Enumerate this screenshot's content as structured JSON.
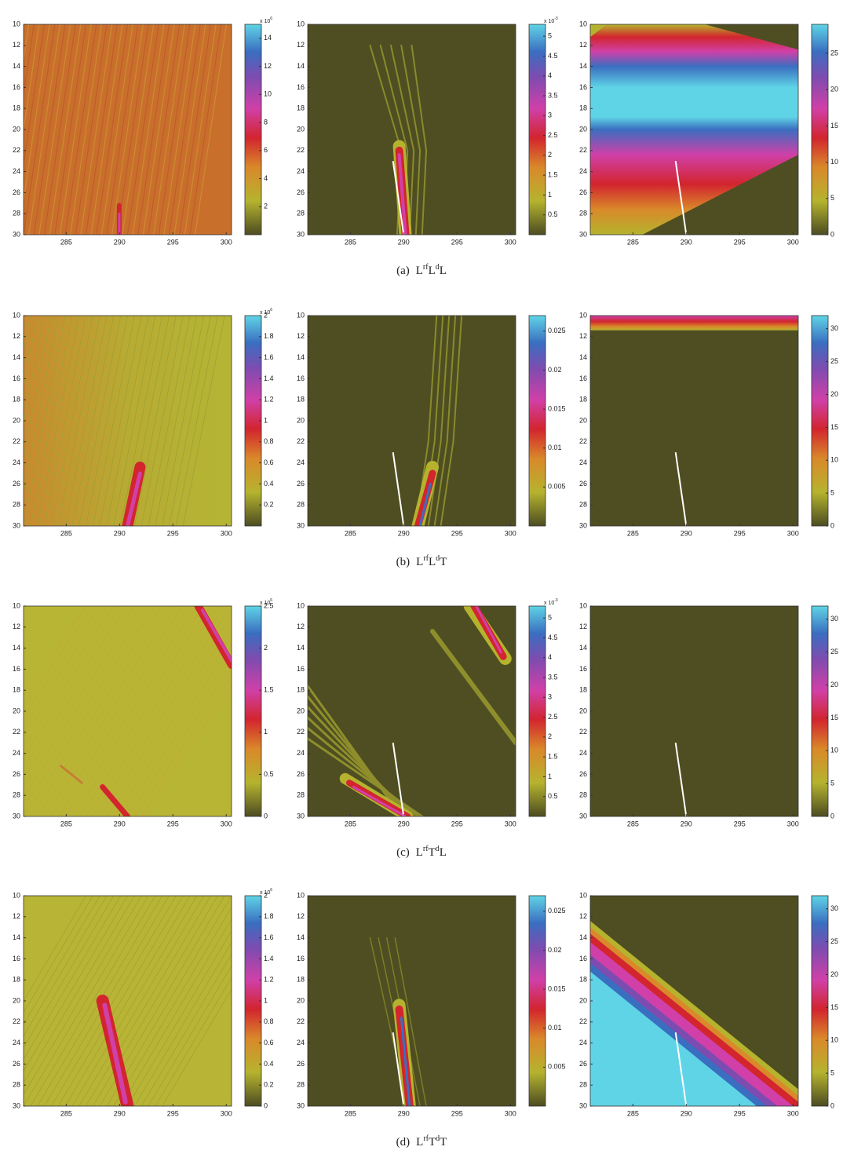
{
  "chart_data": [
    {
      "type": "heatmap",
      "xlim": [
        281,
        300.5
      ],
      "xticks": [
        285,
        290,
        295,
        300
      ],
      "ylim": [
        10,
        30
      ],
      "y_inverted": true,
      "yticks": [
        10,
        12,
        14,
        16,
        18,
        20,
        22,
        24,
        26,
        28,
        30
      ],
      "clim": [
        0,
        15
      ],
      "cticks": [
        2,
        4,
        6,
        8,
        10,
        12,
        14
      ],
      "multiplier": {
        "base": "x 10",
        "exp": "6"
      }
    },
    {
      "type": "heatmap",
      "xlim": [
        281,
        300.5
      ],
      "xticks": [
        285,
        290,
        295,
        300
      ],
      "ylim": [
        10,
        30
      ],
      "y_inverted": true,
      "yticks": [
        10,
        12,
        14,
        16,
        18,
        20,
        22,
        24,
        26,
        28,
        30
      ],
      "clim": [
        0,
        5.3
      ],
      "cticks": [
        0.5,
        1,
        1.5,
        2,
        2.5,
        3,
        3.5,
        4,
        4.5,
        5
      ],
      "multiplier": {
        "base": "x 10",
        "exp": "-3"
      },
      "line": {
        "x": [
          289,
          290
        ],
        "y": [
          23,
          30
        ]
      }
    },
    {
      "type": "heatmap",
      "xlim": [
        281,
        300.5
      ],
      "xticks": [
        285,
        290,
        295,
        300
      ],
      "ylim": [
        10,
        30
      ],
      "y_inverted": true,
      "yticks": [
        10,
        12,
        14,
        16,
        18,
        20,
        22,
        24,
        26,
        28,
        30
      ],
      "clim": [
        0,
        29
      ],
      "cticks": [
        0,
        5,
        10,
        15,
        20,
        25
      ],
      "line": {
        "x": [
          289,
          290
        ],
        "y": [
          23,
          30
        ]
      }
    },
    {
      "type": "heatmap",
      "xlim": [
        281,
        300.5
      ],
      "xticks": [
        285,
        290,
        295,
        300
      ],
      "ylim": [
        10,
        30
      ],
      "y_inverted": true,
      "yticks": [
        10,
        12,
        14,
        16,
        18,
        20,
        22,
        24,
        26,
        28,
        30
      ],
      "clim": [
        0,
        2
      ],
      "cticks": [
        0.2,
        0.4,
        0.6,
        0.8,
        1,
        1.2,
        1.4,
        1.6,
        1.8,
        2
      ],
      "multiplier": {
        "base": "x 10",
        "exp": "6"
      }
    },
    {
      "type": "heatmap",
      "xlim": [
        281,
        300.5
      ],
      "xticks": [
        285,
        290,
        295,
        300
      ],
      "ylim": [
        10,
        30
      ],
      "y_inverted": true,
      "yticks": [
        10,
        12,
        14,
        16,
        18,
        20,
        22,
        24,
        26,
        28,
        30
      ],
      "clim": [
        0,
        0.027
      ],
      "cticks": [
        0.005,
        0.01,
        0.015,
        0.02,
        0.025
      ],
      "line": {
        "x": [
          289,
          290
        ],
        "y": [
          23,
          30
        ]
      }
    },
    {
      "type": "heatmap",
      "xlim": [
        281,
        300.5
      ],
      "xticks": [
        285,
        290,
        295,
        300
      ],
      "ylim": [
        10,
        30
      ],
      "y_inverted": true,
      "yticks": [
        10,
        12,
        14,
        16,
        18,
        20,
        22,
        24,
        26,
        28,
        30
      ],
      "clim": [
        0,
        32
      ],
      "cticks": [
        0,
        5,
        10,
        15,
        20,
        25,
        30
      ],
      "line": {
        "x": [
          289,
          290
        ],
        "y": [
          23,
          30
        ]
      }
    },
    {
      "type": "heatmap",
      "xlim": [
        281,
        300.5
      ],
      "xticks": [
        285,
        290,
        295,
        300
      ],
      "ylim": [
        10,
        30
      ],
      "y_inverted": true,
      "yticks": [
        10,
        12,
        14,
        16,
        18,
        20,
        22,
        24,
        26,
        28,
        30
      ],
      "clim": [
        0,
        2.5
      ],
      "cticks": [
        0,
        0.5,
        1,
        1.5,
        2,
        2.5
      ],
      "multiplier": {
        "base": "x 10",
        "exp": "6"
      }
    },
    {
      "type": "heatmap",
      "xlim": [
        281,
        300.5
      ],
      "xticks": [
        285,
        290,
        295,
        300
      ],
      "ylim": [
        10,
        30
      ],
      "y_inverted": true,
      "yticks": [
        10,
        12,
        14,
        16,
        18,
        20,
        22,
        24,
        26,
        28,
        30
      ],
      "clim": [
        0,
        5.3
      ],
      "cticks": [
        0.5,
        1,
        1.5,
        2,
        2.5,
        3,
        3.5,
        4,
        4.5,
        5
      ],
      "multiplier": {
        "base": "x 10",
        "exp": "-3"
      },
      "line": {
        "x": [
          289,
          290
        ],
        "y": [
          23,
          30
        ]
      }
    },
    {
      "type": "heatmap",
      "xlim": [
        281,
        300.5
      ],
      "xticks": [
        285,
        290,
        295,
        300
      ],
      "ylim": [
        10,
        30
      ],
      "y_inverted": true,
      "yticks": [
        10,
        12,
        14,
        16,
        18,
        20,
        22,
        24,
        26,
        28,
        30
      ],
      "clim": [
        0,
        32
      ],
      "cticks": [
        0,
        5,
        10,
        15,
        20,
        25,
        30
      ],
      "line": {
        "x": [
          289,
          290
        ],
        "y": [
          23,
          30
        ]
      }
    },
    {
      "type": "heatmap",
      "xlim": [
        281,
        300.5
      ],
      "xticks": [
        285,
        290,
        295,
        300
      ],
      "ylim": [
        10,
        30
      ],
      "y_inverted": true,
      "yticks": [
        10,
        12,
        14,
        16,
        18,
        20,
        22,
        24,
        26,
        28,
        30
      ],
      "clim": [
        0,
        2
      ],
      "cticks": [
        0,
        0.2,
        0.4,
        0.6,
        0.8,
        1,
        1.2,
        1.4,
        1.6,
        1.8,
        2
      ],
      "multiplier": {
        "base": "x 10",
        "exp": "6"
      }
    },
    {
      "type": "heatmap",
      "xlim": [
        281,
        300.5
      ],
      "xticks": [
        285,
        290,
        295,
        300
      ],
      "ylim": [
        10,
        30
      ],
      "y_inverted": true,
      "yticks": [
        10,
        12,
        14,
        16,
        18,
        20,
        22,
        24,
        26,
        28,
        30
      ],
      "clim": [
        0,
        0.027
      ],
      "cticks": [
        0.005,
        0.01,
        0.015,
        0.02,
        0.025
      ],
      "line": {
        "x": [
          289,
          290
        ],
        "y": [
          23,
          30
        ]
      }
    },
    {
      "type": "heatmap",
      "xlim": [
        281,
        300.5
      ],
      "xticks": [
        285,
        290,
        295,
        300
      ],
      "ylim": [
        10,
        30
      ],
      "y_inverted": true,
      "yticks": [
        10,
        12,
        14,
        16,
        18,
        20,
        22,
        24,
        26,
        28,
        30
      ],
      "clim": [
        0,
        32
      ],
      "cticks": [
        0,
        5,
        10,
        15,
        20,
        25,
        30
      ],
      "line": {
        "x": [
          289,
          290
        ],
        "y": [
          23,
          30
        ]
      }
    }
  ],
  "captions": [
    {
      "label": "(a)",
      "parts": [
        "L",
        "rf",
        "L",
        "d",
        "L"
      ]
    },
    {
      "label": "(b)",
      "parts": [
        "L",
        "rf",
        "L",
        "d",
        "T"
      ]
    },
    {
      "label": "(c)",
      "parts": [
        "L",
        "rf",
        "T",
        "d",
        "L"
      ]
    },
    {
      "label": "(d)",
      "parts": [
        "L",
        "rf",
        "T",
        "d",
        "T"
      ]
    }
  ]
}
